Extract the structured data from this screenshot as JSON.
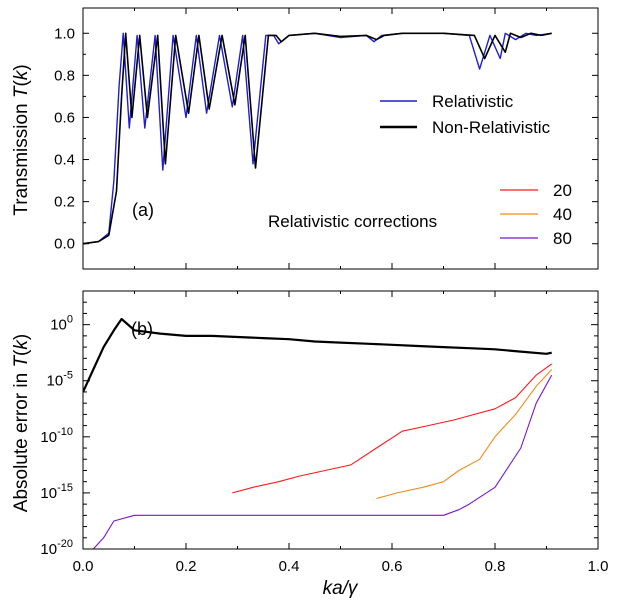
{
  "chart_data": [
    {
      "panel": "top",
      "type": "line",
      "panel_label": "(a)",
      "ylabel": "Transmission T(k)",
      "ylabel_parts": [
        "Transmission ",
        "T",
        "(",
        "k",
        ")"
      ],
      "xlim": [
        0.0,
        1.0
      ],
      "ylim": [
        -0.12,
        1.12
      ],
      "yticks": [
        "0.0",
        "0.2",
        "0.4",
        "0.6",
        "0.8",
        "1.0"
      ],
      "legend": {
        "placement": "center-right",
        "entries": [
          {
            "name": "Relativistic",
            "color": "#1f1fd0"
          },
          {
            "name": "Non-Relativistic",
            "color": "#000000"
          }
        ]
      },
      "corrections_legend": {
        "title": "Relativistic corrections",
        "placement": "bottom-right",
        "entries": [
          {
            "name": "20",
            "color": "#ff1a1a"
          },
          {
            "name": "40",
            "color": "#f08c1e"
          },
          {
            "name": "80",
            "color": "#7a17c8"
          }
        ]
      },
      "series": [
        {
          "name": "Relativistic",
          "color": "#1f1fd0",
          "x": [
            0.0,
            0.03,
            0.05,
            0.06,
            0.07,
            0.078,
            0.09,
            0.105,
            0.12,
            0.14,
            0.155,
            0.175,
            0.2,
            0.22,
            0.24,
            0.265,
            0.29,
            0.31,
            0.33,
            0.355,
            0.37,
            0.38,
            0.4,
            0.45,
            0.5,
            0.55,
            0.565,
            0.58,
            0.62,
            0.7,
            0.75,
            0.77,
            0.79,
            0.81,
            0.82,
            0.84,
            0.86,
            0.88,
            0.91
          ],
          "y": [
            0.0,
            0.01,
            0.05,
            0.3,
            0.75,
            1.0,
            0.55,
            0.99,
            0.55,
            0.99,
            0.35,
            0.99,
            0.6,
            0.99,
            0.62,
            0.99,
            0.65,
            0.99,
            0.38,
            0.99,
            0.99,
            0.95,
            0.99,
            1.0,
            0.98,
            0.99,
            0.96,
            0.99,
            1.0,
            1.0,
            0.99,
            0.83,
            0.99,
            0.88,
            1.0,
            0.97,
            1.0,
            0.99,
            1.0
          ]
        },
        {
          "name": "Non-Relativistic",
          "color": "#000000",
          "x": [
            0.0,
            0.03,
            0.05,
            0.065,
            0.075,
            0.083,
            0.095,
            0.11,
            0.125,
            0.145,
            0.16,
            0.18,
            0.205,
            0.225,
            0.245,
            0.27,
            0.295,
            0.315,
            0.335,
            0.36,
            0.375,
            0.385,
            0.4,
            0.45,
            0.5,
            0.55,
            0.57,
            0.585,
            0.62,
            0.7,
            0.76,
            0.78,
            0.8,
            0.82,
            0.83,
            0.85,
            0.87,
            0.89,
            0.91
          ],
          "y": [
            0.0,
            0.01,
            0.04,
            0.25,
            0.7,
            1.0,
            0.6,
            0.99,
            0.6,
            0.99,
            0.38,
            0.99,
            0.62,
            0.99,
            0.64,
            0.99,
            0.66,
            0.99,
            0.36,
            0.99,
            0.99,
            0.96,
            0.99,
            1.0,
            0.985,
            0.99,
            0.97,
            0.99,
            1.0,
            1.0,
            0.99,
            0.88,
            0.99,
            0.91,
            1.0,
            0.98,
            1.0,
            0.99,
            1.0
          ]
        }
      ]
    },
    {
      "panel": "bottom",
      "type": "line",
      "y_scale": "log",
      "panel_label": "(b)",
      "xlabel": "ka/γ",
      "ylabel": "Absolute error in T(k)",
      "ylabel_parts": [
        "Absolute error in ",
        "T",
        "(",
        "k",
        ")"
      ],
      "xlim": [
        0.0,
        1.0
      ],
      "xticks": [
        "0.0",
        "0.2",
        "0.4",
        "0.6",
        "0.8",
        "1.0"
      ],
      "ylim_exp": [
        -20,
        3
      ],
      "yticks": [
        {
          "base": "10",
          "exp": "0",
          "value": 0
        },
        {
          "base": "10",
          "exp": "-5",
          "value": -5
        },
        {
          "base": "10",
          "exp": "-10",
          "value": -10
        },
        {
          "base": "10",
          "exp": "-15",
          "value": -15
        },
        {
          "base": "10",
          "exp": "-20",
          "value": -20
        }
      ],
      "series": [
        {
          "name": "Non-Relativistic",
          "color": "#000000",
          "x": [
            0.0,
            0.02,
            0.04,
            0.06,
            0.075,
            0.1,
            0.15,
            0.2,
            0.25,
            0.3,
            0.35,
            0.4,
            0.45,
            0.5,
            0.55,
            0.6,
            0.65,
            0.7,
            0.75,
            0.8,
            0.85,
            0.9,
            0.91
          ],
          "y_exp": [
            -6,
            -4,
            -2,
            -0.5,
            0.5,
            -0.5,
            -0.8,
            -1.0,
            -1.0,
            -1.1,
            -1.2,
            -1.3,
            -1.5,
            -1.6,
            -1.7,
            -1.8,
            -1.9,
            -2.0,
            -2.1,
            -2.2,
            -2.4,
            -2.6,
            -2.5
          ]
        },
        {
          "name": "20",
          "color": "#ff1a1a",
          "x": [
            0.29,
            0.33,
            0.38,
            0.42,
            0.47,
            0.52,
            0.57,
            0.62,
            0.67,
            0.72,
            0.76,
            0.8,
            0.84,
            0.88,
            0.91
          ],
          "y_exp": [
            -15,
            -14.5,
            -14,
            -13.5,
            -13,
            -12.5,
            -11,
            -9.5,
            -9,
            -8.5,
            -8,
            -7.5,
            -6.5,
            -4.5,
            -3.5
          ]
        },
        {
          "name": "40",
          "color": "#f08c1e",
          "x": [
            0.57,
            0.61,
            0.66,
            0.7,
            0.73,
            0.77,
            0.8,
            0.84,
            0.88,
            0.91
          ],
          "y_exp": [
            -15.5,
            -15,
            -14.5,
            -14,
            -13,
            -12,
            -10,
            -8,
            -5.5,
            -4
          ]
        },
        {
          "name": "80",
          "color": "#7a17c8",
          "x": [
            0.0,
            0.02,
            0.04,
            0.06,
            0.1,
            0.2,
            0.3,
            0.4,
            0.5,
            0.6,
            0.7,
            0.73,
            0.75,
            0.8,
            0.85,
            0.88,
            0.91
          ],
          "y_exp": [
            -21,
            -20,
            -19,
            -17.5,
            -17,
            -17,
            -17,
            -17,
            -17,
            -17,
            -17,
            -16.5,
            -16,
            -14.5,
            -11,
            -7,
            -4.5
          ]
        }
      ]
    }
  ]
}
